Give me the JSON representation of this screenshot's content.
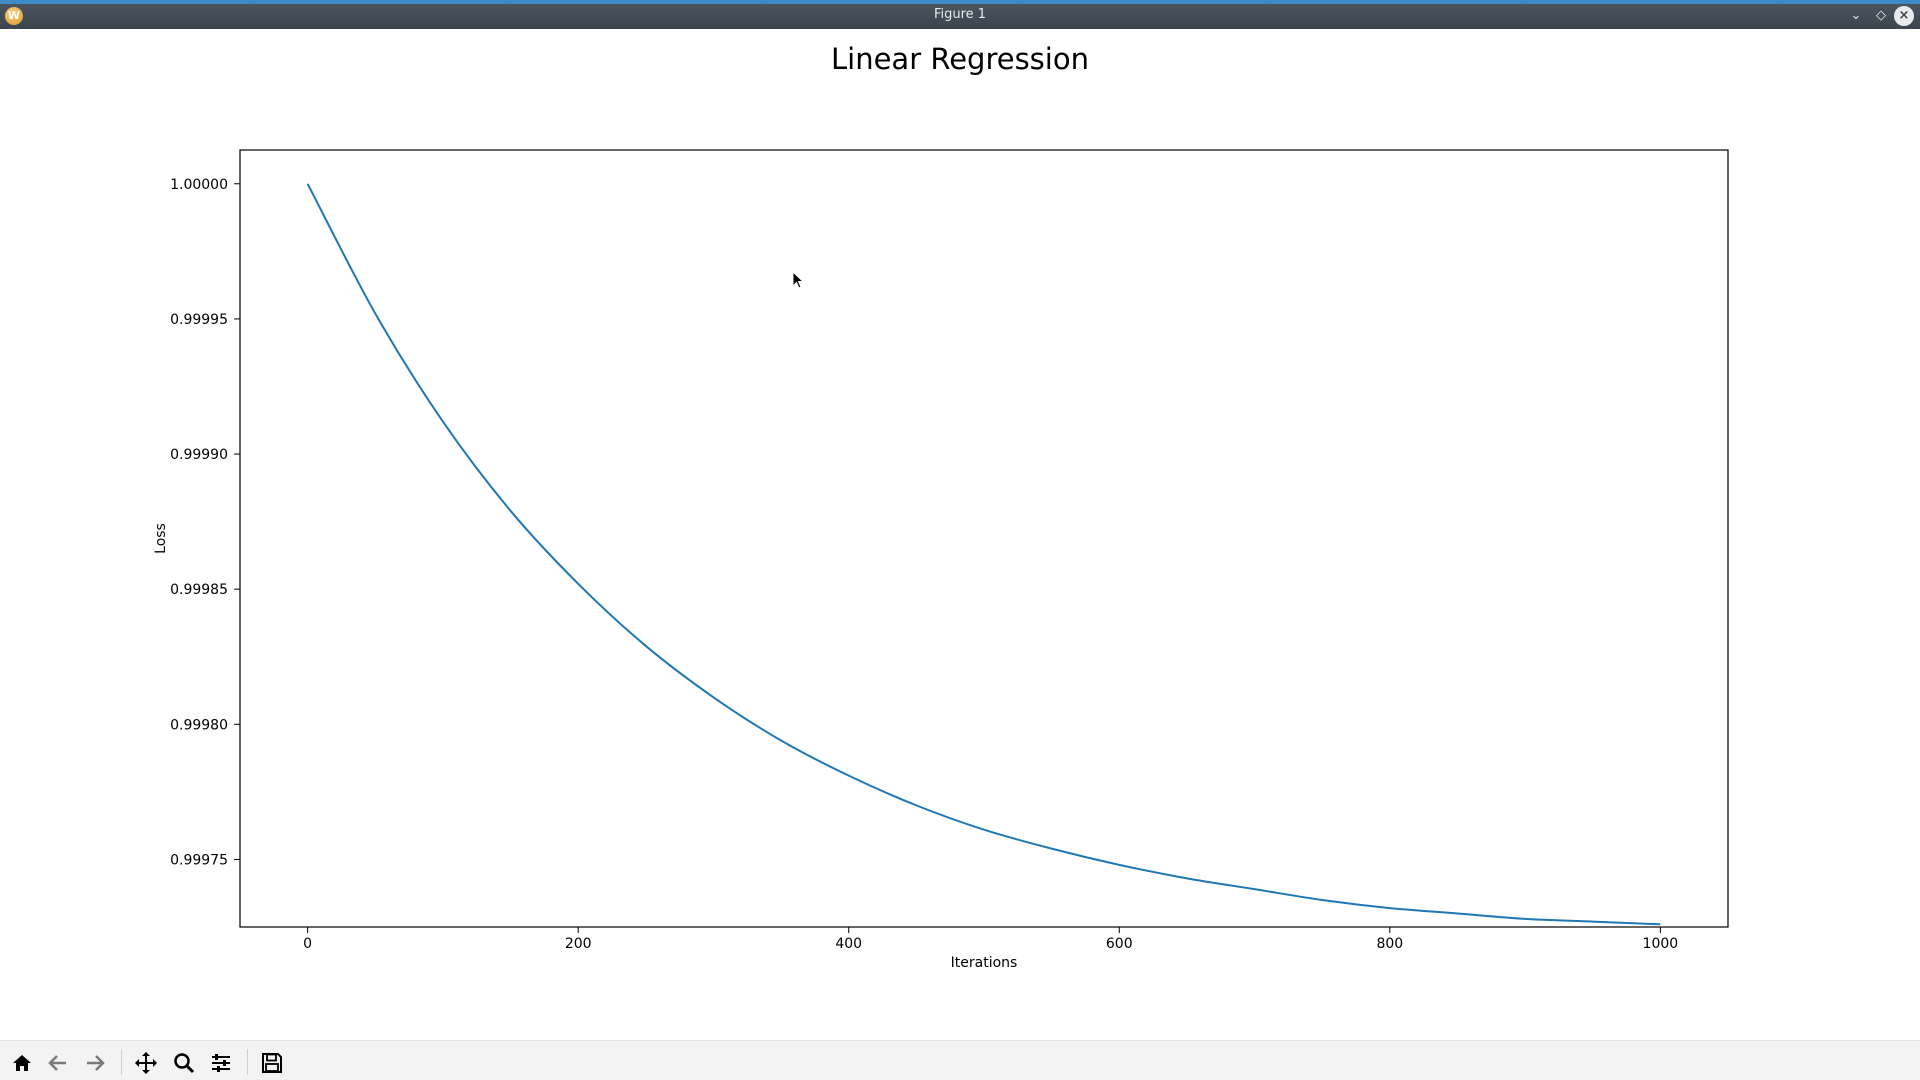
{
  "window": {
    "title": "Figure 1",
    "app_icon_letter": "W"
  },
  "figure": {
    "title": "Linear Regression"
  },
  "toolbar": {
    "buttons": [
      "home-icon",
      "back-arrow-icon",
      "forward-arrow-icon",
      "pan-icon",
      "zoom-icon",
      "configure-subplots-icon",
      "save-icon"
    ]
  },
  "chart_data": {
    "type": "line",
    "title": "Linear Regression",
    "xlabel": "Iterations",
    "ylabel": "Loss",
    "xlim": [
      -50,
      1050
    ],
    "ylim": [
      0.999725,
      1.0000125
    ],
    "xticks": [
      0,
      200,
      400,
      600,
      800,
      1000
    ],
    "xtick_labels": [
      "0",
      "200",
      "400",
      "600",
      "800",
      "1000"
    ],
    "yticks": [
      0.99975,
      0.9998,
      0.99985,
      0.9999,
      0.99995,
      1.0
    ],
    "ytick_labels": [
      "0.99975",
      "0.99980",
      "0.99985",
      "0.99990",
      "0.99995",
      "1.00000"
    ],
    "grid": false,
    "color": "#1f77b4",
    "series": [
      {
        "x": [
          0,
          50,
          100,
          150,
          200,
          250,
          300,
          350,
          400,
          450,
          500,
          550,
          600,
          650,
          700,
          750,
          800,
          850,
          900,
          950,
          1000
        ],
        "values": [
          1.0,
          0.999952,
          0.999912,
          0.999879,
          0.999852,
          0.999829,
          0.99981,
          0.999794,
          0.999781,
          0.99977,
          0.999761,
          0.999754,
          0.999748,
          0.999743,
          0.999739,
          0.999735,
          0.999732,
          0.99973,
          0.999728,
          0.999727,
          0.999726
        ]
      }
    ]
  }
}
